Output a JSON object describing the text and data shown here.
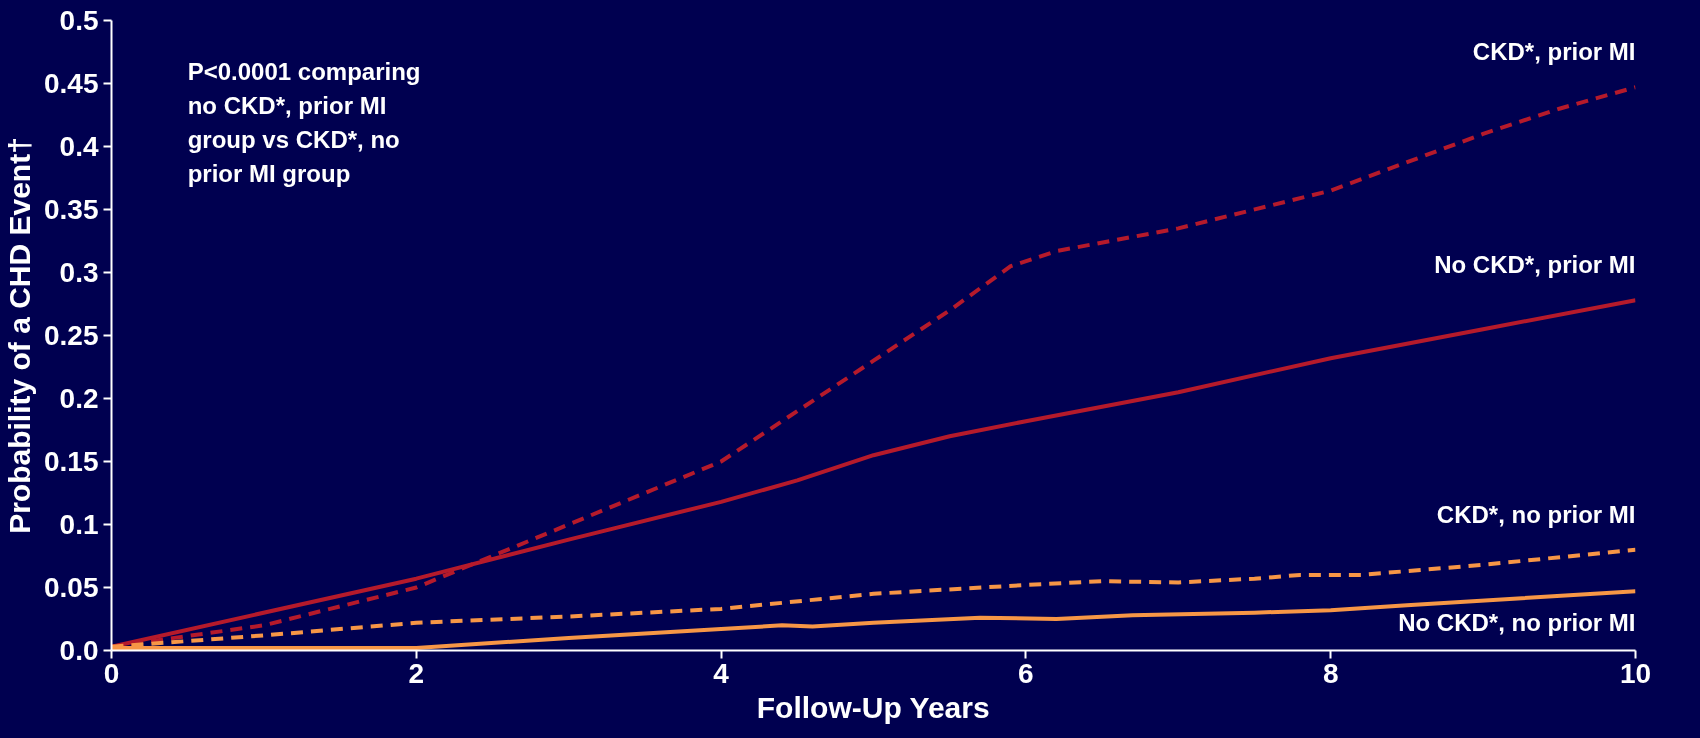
{
  "chart_data": {
    "type": "line",
    "xlabel": "Follow-Up Years",
    "ylabel": "Probability of a CHD Event†",
    "xlim": [
      0,
      10
    ],
    "xticks": [
      0,
      2,
      4,
      6,
      8,
      10
    ],
    "ylim": [
      0,
      0.5
    ],
    "yticks": [
      {
        "value": 0,
        "label": "0.0"
      },
      0.05,
      0.1,
      0.15,
      0.2,
      0.25,
      0.3,
      0.35,
      0.4,
      0.45,
      0.5
    ],
    "grid": false,
    "marker": "none",
    "annotations": [
      "P<0.0001 comparing\nno CKD*, prior MI\ngroup vs CKD*, no\nprior MI group"
    ],
    "series": [
      {
        "name": "CKD*, prior MI",
        "color": "#b51a2b",
        "line_style": "dashed",
        "x": [
          0,
          1,
          2,
          3,
          4,
          5,
          5.5,
          5.9,
          6.2,
          7,
          8,
          9,
          9.5,
          10
        ],
        "values": [
          0.003,
          0.02,
          0.05,
          0.1,
          0.15,
          0.23,
          0.27,
          0.305,
          0.317,
          0.335,
          0.365,
          0.41,
          0.43,
          0.447
        ]
      },
      {
        "name": "No CKD*, prior MI",
        "color": "#b51a2b",
        "line_style": "solid",
        "x": [
          0,
          2,
          3,
          4,
          4.5,
          5,
          5.5,
          6,
          7,
          8,
          9,
          10
        ],
        "values": [
          0.003,
          0.057,
          0.088,
          0.118,
          0.135,
          0.155,
          0.17,
          0.182,
          0.205,
          0.232,
          0.255,
          0.278
        ]
      },
      {
        "name": "CKD*, no prior MI",
        "color": "#f79646",
        "line_style": "dashed",
        "x": [
          0,
          1,
          2,
          3,
          4,
          5,
          6,
          6.5,
          7,
          7.5,
          7.8,
          8.2,
          9,
          10
        ],
        "values": [
          0.003,
          0.012,
          0.022,
          0.027,
          0.033,
          0.045,
          0.052,
          0.055,
          0.054,
          0.057,
          0.06,
          0.06,
          0.068,
          0.08
        ]
      },
      {
        "name": "No CKD*, no prior MI",
        "color": "#f79646",
        "line_style": "solid",
        "x": [
          0,
          2,
          3,
          4,
          4.4,
          4.6,
          5,
          5.7,
          6.2,
          6.7,
          7.5,
          8,
          8.5,
          10
        ],
        "values": [
          0.002,
          0.002,
          0.01,
          0.017,
          0.02,
          0.019,
          0.022,
          0.026,
          0.025,
          0.028,
          0.03,
          0.032,
          0.036,
          0.047
        ]
      }
    ]
  }
}
